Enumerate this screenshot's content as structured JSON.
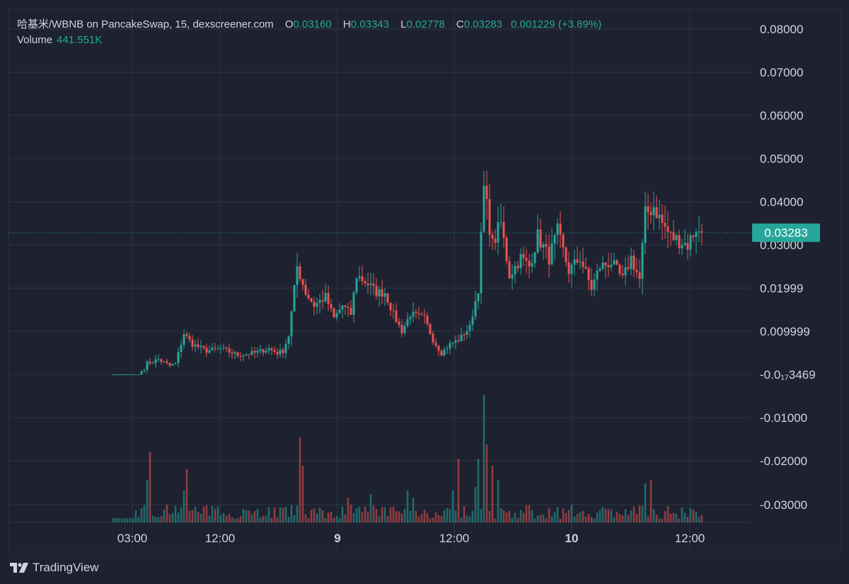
{
  "legend": {
    "symbol": "哈基米/WBNB on PancakeSwap, 15, dexscreener.com",
    "open_label": "O",
    "open": "0.03160",
    "high_label": "H",
    "high": "0.03343",
    "low_label": "L",
    "low": "0.02778",
    "close_label": "C",
    "close": "0.03283",
    "change": "0.001229 (+3.89%)",
    "volume_label": "Volume",
    "volume": "441.551K"
  },
  "last_price_label": "0.03283",
  "branding": "TradingView",
  "colors": {
    "background": "#1e2230",
    "up": "#26a69a",
    "down": "#ef5350",
    "grid": "#2f3444",
    "text": "#d1d4dc"
  },
  "chart_data": {
    "type": "candlestick",
    "title": "",
    "y_tick_labels": [
      "0.08000",
      "0.07000",
      "0.06000",
      "0.05000",
      "0.04000",
      "0.03000",
      "0.01999",
      "0.009999",
      "-0.0₁₇3469",
      "-0.01000",
      "-0.02000",
      "-0.03000"
    ],
    "x_tick_labels": [
      {
        "label": "03:00",
        "bold": false
      },
      {
        "label": "12:00",
        "bold": false
      },
      {
        "label": "9",
        "bold": true
      },
      {
        "label": "12:00",
        "bold": false
      },
      {
        "label": "10",
        "bold": true
      },
      {
        "label": "12:00",
        "bold": false
      }
    ],
    "last_price": 0.03283,
    "close_path": [
      [
        0,
        0.0
      ],
      [
        9,
        0.0
      ],
      [
        12,
        0.0025
      ],
      [
        16,
        0.0035
      ],
      [
        20,
        0.002
      ],
      [
        22,
        0.0025
      ],
      [
        25,
        0.0095
      ],
      [
        28,
        0.007
      ],
      [
        33,
        0.0055
      ],
      [
        38,
        0.006
      ],
      [
        44,
        0.0045
      ],
      [
        50,
        0.005
      ],
      [
        55,
        0.006
      ],
      [
        58,
        0.005
      ],
      [
        60,
        0.0055
      ],
      [
        62,
        0.009
      ],
      [
        65,
        0.025
      ],
      [
        68,
        0.019
      ],
      [
        71,
        0.016
      ],
      [
        75,
        0.018
      ],
      [
        78,
        0.013
      ],
      [
        81,
        0.016
      ],
      [
        84,
        0.014
      ],
      [
        86,
        0.023
      ],
      [
        90,
        0.021
      ],
      [
        93,
        0.019
      ],
      [
        96,
        0.019
      ],
      [
        99,
        0.014
      ],
      [
        102,
        0.01
      ],
      [
        105,
        0.014
      ],
      [
        110,
        0.013
      ],
      [
        113,
        0.008
      ],
      [
        116,
        0.005
      ],
      [
        119,
        0.007
      ],
      [
        122,
        0.008
      ],
      [
        126,
        0.011
      ],
      [
        129,
        0.02
      ],
      [
        131,
        0.043
      ],
      [
        134,
        0.03
      ],
      [
        137,
        0.035
      ],
      [
        140,
        0.023
      ],
      [
        144,
        0.027
      ],
      [
        147,
        0.025
      ],
      [
        150,
        0.032
      ],
      [
        154,
        0.027
      ],
      [
        157,
        0.033
      ],
      [
        161,
        0.024
      ],
      [
        165,
        0.027
      ],
      [
        169,
        0.02
      ],
      [
        172,
        0.025
      ],
      [
        176,
        0.026
      ],
      [
        180,
        0.022
      ],
      [
        183,
        0.027
      ],
      [
        186,
        0.022
      ],
      [
        188,
        0.037
      ],
      [
        191,
        0.039
      ],
      [
        194,
        0.035
      ],
      [
        197,
        0.032
      ],
      [
        200,
        0.031
      ],
      [
        203,
        0.03
      ],
      [
        206,
        0.034
      ],
      [
        208,
        0.031
      ]
    ],
    "volume_spikes": [
      [
        10,
        0.2
      ],
      [
        12,
        0.6
      ],
      [
        13,
        1.0
      ],
      [
        25,
        0.45
      ],
      [
        26,
        0.75
      ],
      [
        66,
        1.2
      ],
      [
        67,
        0.8
      ],
      [
        83,
        0.35
      ],
      [
        91,
        0.4
      ],
      [
        104,
        0.45
      ],
      [
        106,
        0.35
      ],
      [
        120,
        0.45
      ],
      [
        122,
        0.9
      ],
      [
        128,
        0.5
      ],
      [
        129,
        0.9
      ],
      [
        131,
        1.8
      ],
      [
        132,
        1.1
      ],
      [
        134,
        0.8
      ],
      [
        136,
        0.6
      ],
      [
        188,
        0.55
      ],
      [
        190,
        0.6
      ],
      [
        204,
        0.2
      ],
      [
        206,
        0.15
      ]
    ]
  }
}
